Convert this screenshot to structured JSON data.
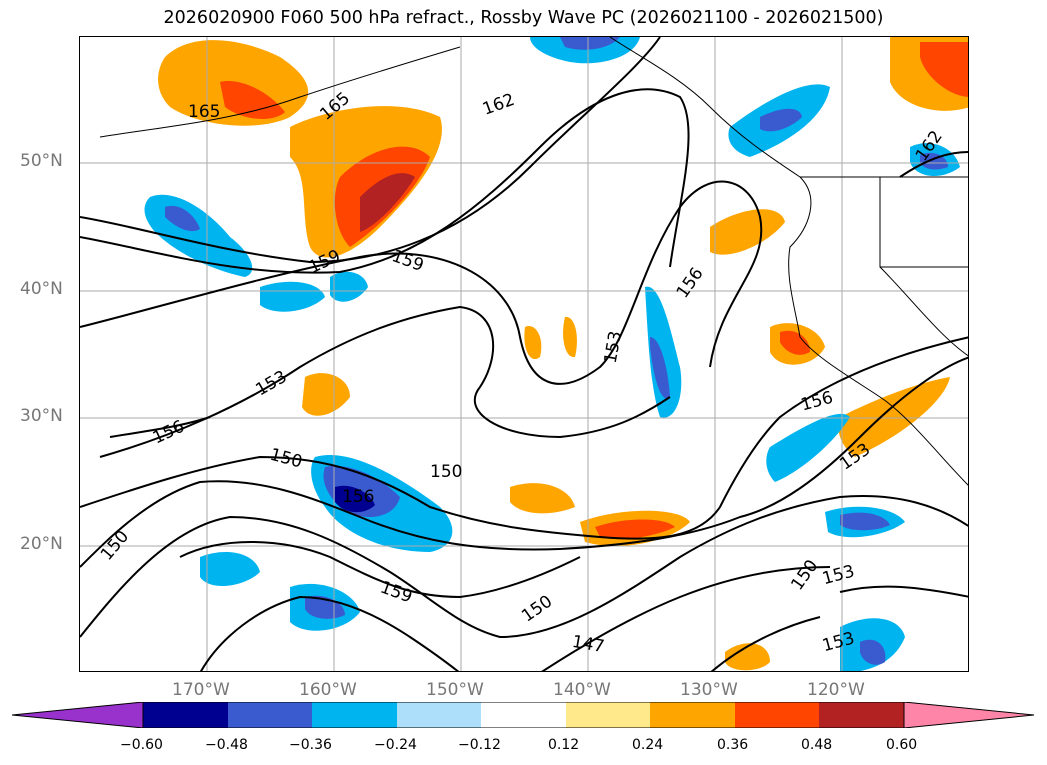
{
  "title": "2026020900 F060 500 hPa refract., Rossby Wave PC (2026021100 - 2026021500)",
  "latitude_labels": [
    "50°N",
    "40°N",
    "30°N",
    "20°N"
  ],
  "longitude_labels": [
    "170°W",
    "160°W",
    "150°W",
    "140°W",
    "130°W",
    "120°W"
  ],
  "contour_labels": [
    "165",
    "165",
    "162",
    "162",
    "159",
    "159",
    "159",
    "156",
    "156",
    "156",
    "156",
    "153",
    "153",
    "153",
    "153",
    "153",
    "150",
    "150",
    "150",
    "150",
    "150",
    "147"
  ],
  "colorbar": {
    "ticks": [
      "−0.60",
      "−0.48",
      "−0.36",
      "−0.24",
      "−0.12",
      "0.12",
      "0.24",
      "0.36",
      "0.48",
      "0.60"
    ],
    "colors": [
      "#9932CC",
      "#000090",
      "#3A5BD0",
      "#00B4F0",
      "#AEDFFA",
      "#FFFFFF",
      "#FFE98A",
      "#FFA500",
      "#FF4500",
      "#B22222",
      "#FF85A8"
    ]
  }
}
